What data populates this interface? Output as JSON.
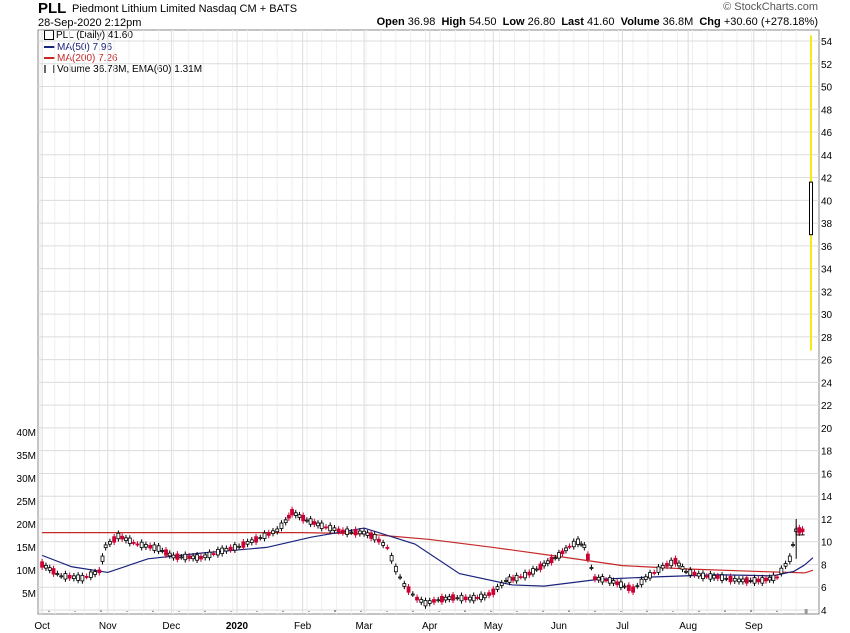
{
  "header": {
    "symbol": "PLL",
    "company": "Piedmont Lithium Limited",
    "exchange": "Nasdaq CM + BATS",
    "datetime": "28-Sep-2020 2:12pm",
    "watermark": "© StockCharts.com",
    "open_label": "Open",
    "open": "36.98",
    "high_label": "High",
    "high": "54.50",
    "low_label": "Low",
    "low": "26.80",
    "last_label": "Last",
    "last": "41.60",
    "volume_label": "Volume",
    "volume": "36.8M",
    "chg_label": "Chg",
    "chg": "+30.60 (+278.18%)"
  },
  "legend": {
    "price": "PLL (Daily) 41.60",
    "ma50": "MA(50) 7.96",
    "ma200": "MA(200) 7.26",
    "volume": "Volume 36.78M, EMA(60) 1.31M"
  },
  "colors": {
    "up": "#000000",
    "down": "#cc0033",
    "ma50": "#1a237e",
    "ma200": "#c62828",
    "volume_bar": "#999999",
    "highlight": "#f5ea14",
    "grid": "#dcdcdc"
  },
  "chart_data": {
    "type": "line",
    "price_axis": {
      "ticks": [
        4,
        6,
        8,
        10,
        12,
        14,
        16,
        18,
        20,
        22,
        24,
        26,
        28,
        30,
        32,
        34,
        36,
        38,
        40,
        42,
        44,
        46,
        48,
        50,
        52,
        54
      ],
      "range": [
        3,
        55
      ]
    },
    "volume_axis": {
      "ticks": [
        "5M",
        "10M",
        "15M",
        "20M",
        "25M",
        "30M",
        "35M",
        "40M"
      ]
    },
    "x_labels": [
      "Oct",
      "Nov",
      "Dec",
      "2020",
      "Feb",
      "Mar",
      "Apr",
      "May",
      "Jun",
      "Jul",
      "Aug",
      "Sep"
    ],
    "price_series": {
      "name": "PLL (Daily)",
      "points": [
        [
          "2019-10-01",
          8.0
        ],
        [
          "2019-10-10",
          7.0
        ],
        [
          "2019-10-20",
          6.8
        ],
        [
          "2019-10-28",
          7.4
        ],
        [
          "2019-10-31",
          9.6
        ],
        [
          "2019-11-06",
          10.5
        ],
        [
          "2019-11-15",
          9.8
        ],
        [
          "2019-11-25",
          9.4
        ],
        [
          "2019-12-02",
          8.7
        ],
        [
          "2019-12-15",
          8.6
        ],
        [
          "2019-12-25",
          9.2
        ],
        [
          "2020-01-02",
          9.6
        ],
        [
          "2020-01-10",
          10.2
        ],
        [
          "2020-01-20",
          11.0
        ],
        [
          "2020-01-24",
          11.8
        ],
        [
          "2020-01-27",
          12.6
        ],
        [
          "2020-02-03",
          11.9
        ],
        [
          "2020-02-10",
          11.4
        ],
        [
          "2020-02-20",
          10.9
        ],
        [
          "2020-03-01",
          10.8
        ],
        [
          "2020-03-06",
          10.4
        ],
        [
          "2020-03-12",
          9.5
        ],
        [
          "2020-03-16",
          7.6
        ],
        [
          "2020-03-20",
          6.2
        ],
        [
          "2020-03-26",
          5.0
        ],
        [
          "2020-03-30",
          4.6
        ],
        [
          "2020-04-05",
          4.9
        ],
        [
          "2020-04-12",
          5.1
        ],
        [
          "2020-04-20",
          5.0
        ],
        [
          "2020-04-27",
          5.2
        ],
        [
          "2020-05-01",
          5.6
        ],
        [
          "2020-05-07",
          6.6
        ],
        [
          "2020-05-12",
          6.8
        ],
        [
          "2020-05-18",
          7.2
        ],
        [
          "2020-05-25",
          8.0
        ],
        [
          "2020-06-01",
          8.8
        ],
        [
          "2020-06-06",
          9.6
        ],
        [
          "2020-06-10",
          10.0
        ],
        [
          "2020-06-13",
          9.6
        ],
        [
          "2020-06-18",
          6.8
        ],
        [
          "2020-06-25",
          6.6
        ],
        [
          "2020-07-02",
          6.1
        ],
        [
          "2020-07-06",
          5.8
        ],
        [
          "2020-07-12",
          6.8
        ],
        [
          "2020-07-20",
          7.8
        ],
        [
          "2020-07-26",
          8.3
        ],
        [
          "2020-07-31",
          7.4
        ],
        [
          "2020-08-08",
          7.0
        ],
        [
          "2020-08-15",
          6.9
        ],
        [
          "2020-08-25",
          6.6
        ],
        [
          "2020-09-05",
          6.6
        ],
        [
          "2020-09-12",
          6.9
        ],
        [
          "2020-09-18",
          8.5
        ],
        [
          "2020-09-21",
          11.0
        ],
        [
          "2020-09-24",
          11.0
        ],
        [
          "2020-09-25",
          11.0
        ]
      ]
    },
    "ma50_series": {
      "name": "MA(50)",
      "points": [
        [
          "2019-10-01",
          8.8
        ],
        [
          "2019-10-15",
          7.8
        ],
        [
          "2019-11-01",
          7.3
        ],
        [
          "2019-11-20",
          8.5
        ],
        [
          "2019-12-15",
          9.0
        ],
        [
          "2020-01-15",
          9.5
        ],
        [
          "2020-02-05",
          10.4
        ],
        [
          "2020-03-01",
          11.2
        ],
        [
          "2020-03-25",
          9.8
        ],
        [
          "2020-04-15",
          7.2
        ],
        [
          "2020-05-10",
          6.2
        ],
        [
          "2020-05-25",
          6.1
        ],
        [
          "2020-06-20",
          6.7
        ],
        [
          "2020-07-15",
          6.9
        ],
        [
          "2020-08-15",
          7.1
        ],
        [
          "2020-09-10",
          7.0
        ],
        [
          "2020-09-20",
          7.4
        ],
        [
          "2020-09-25",
          7.96
        ]
      ]
    },
    "ma200_series": {
      "name": "MA(200)",
      "points": [
        [
          "2019-10-01",
          10.8
        ],
        [
          "2019-11-15",
          10.8
        ],
        [
          "2019-12-15",
          10.8
        ],
        [
          "2020-02-01",
          10.8
        ],
        [
          "2020-03-01",
          10.7
        ],
        [
          "2020-04-01",
          10.2
        ],
        [
          "2020-05-01",
          9.5
        ],
        [
          "2020-06-01",
          8.7
        ],
        [
          "2020-07-01",
          7.9
        ],
        [
          "2020-08-01",
          7.6
        ],
        [
          "2020-09-01",
          7.4
        ],
        [
          "2020-09-25",
          7.26
        ]
      ]
    },
    "last_bar": {
      "date": "2020-09-28",
      "open": 36.98,
      "high": 54.5,
      "low": 26.8,
      "last": 41.6
    },
    "volume": {
      "last": 36.78,
      "unit": "M",
      "ema60": 1.31
    }
  }
}
